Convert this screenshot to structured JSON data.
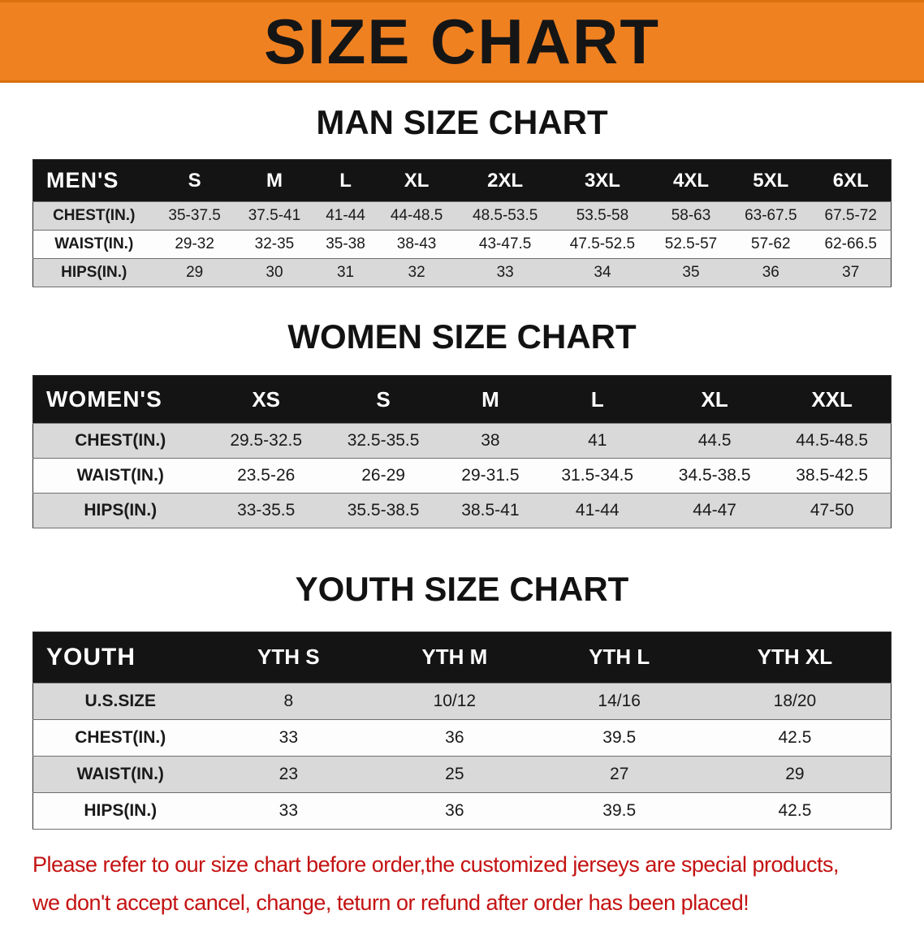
{
  "banner": {
    "title": "SIZE CHART",
    "bg_color": "#f08121",
    "text_color": "#151515"
  },
  "chart_data": [
    {
      "type": "table",
      "title": "MAN SIZE CHART",
      "columns": [
        "MEN'S",
        "S",
        "M",
        "L",
        "XL",
        "2XL",
        "3XL",
        "4XL",
        "5XL",
        "6XL"
      ],
      "rows": [
        [
          "CHEST(IN.)",
          "35-37.5",
          "37.5-41",
          "41-44",
          "44-48.5",
          "48.5-53.5",
          "53.5-58",
          "58-63",
          "63-67.5",
          "67.5-72"
        ],
        [
          "WAIST(IN.)",
          "29-32",
          "32-35",
          "35-38",
          "38-43",
          "43-47.5",
          "47.5-52.5",
          "52.5-57",
          "57-62",
          "62-66.5"
        ],
        [
          "HIPS(IN.)",
          "29",
          "30",
          "31",
          "32",
          "33",
          "34",
          "35",
          "36",
          "37"
        ]
      ]
    },
    {
      "type": "table",
      "title": "WOMEN SIZE CHART",
      "columns": [
        "WOMEN'S",
        "XS",
        "S",
        "M",
        "L",
        "XL",
        "XXL"
      ],
      "rows": [
        [
          "CHEST(IN.)",
          "29.5-32.5",
          "32.5-35.5",
          "38",
          "41",
          "44.5",
          "44.5-48.5"
        ],
        [
          "WAIST(IN.)",
          "23.5-26",
          "26-29",
          "29-31.5",
          "31.5-34.5",
          "34.5-38.5",
          "38.5-42.5"
        ],
        [
          "HIPS(IN.)",
          "33-35.5",
          "35.5-38.5",
          "38.5-41",
          "41-44",
          "44-47",
          "47-50"
        ]
      ]
    },
    {
      "type": "table",
      "title": "YOUTH SIZE CHART",
      "columns": [
        "YOUTH",
        "YTH S",
        "YTH M",
        "YTH L",
        "YTH XL"
      ],
      "rows": [
        [
          "U.S.SIZE",
          "8",
          "10/12",
          "14/16",
          "18/20"
        ],
        [
          "CHEST(IN.)",
          "33",
          "36",
          "39.5",
          "42.5"
        ],
        [
          "WAIST(IN.)",
          "23",
          "25",
          "27",
          "29"
        ],
        [
          "HIPS(IN.)",
          "33",
          "36",
          "39.5",
          "42.5"
        ]
      ]
    }
  ],
  "disclaimer": {
    "color": "#c41212",
    "lines": [
      "Please refer to our size chart before order,the customized jerseys are special products,",
      "we don't accept cancel, change, teturn or refund after order has been placed!"
    ]
  }
}
